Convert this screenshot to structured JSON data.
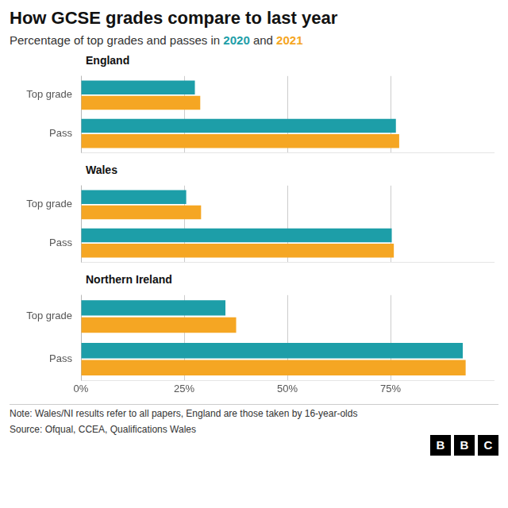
{
  "title": "How GCSE grades compare to last year",
  "subtitle": "Percentage of top grades and passes in 2020 and 2021",
  "annotations": [
    "Note: Wales/NI results refer to all papers, England are those taken by 16-year-olds",
    "Source: Ofqual, CCEA, Qualifications Wales",
    "BBC"
  ],
  "chart_data": [
    {
      "type": "bar",
      "title": "England",
      "orientation": "horizontal",
      "categories": [
        "Top grade",
        "Pass"
      ],
      "series": [
        {
          "name": "2020",
          "color": "#1D9EA8",
          "values": [
            27.6,
            76.3
          ]
        },
        {
          "name": "2021",
          "color": "#F5A623",
          "values": [
            28.9,
            77.1
          ]
        }
      ],
      "xlim": [
        0,
        100
      ],
      "xticks": [
        {
          "value": 0,
          "label": "0%"
        },
        {
          "value": 25,
          "label": "25%"
        },
        {
          "value": 50,
          "label": "50%"
        },
        {
          "value": 75,
          "label": "75%"
        }
      ],
      "grid": true,
      "tick_labels": "y"
    },
    {
      "type": "bar",
      "title": "Wales",
      "orientation": "horizontal",
      "categories": [
        "Top grade",
        "Pass"
      ],
      "series": [
        {
          "name": "2020",
          "color": "#1D9EA8",
          "values": [
            25.5,
            75.3
          ]
        },
        {
          "name": "2021",
          "color": "#F5A623",
          "values": [
            29.1,
            75.8
          ]
        }
      ],
      "xlim": [
        0,
        100
      ],
      "xticks": [
        {
          "value": 0,
          "label": "0%"
        },
        {
          "value": 25,
          "label": "25%"
        },
        {
          "value": 50,
          "label": "50%"
        },
        {
          "value": 75,
          "label": "75%"
        }
      ],
      "grid": true,
      "tick_labels": "y"
    },
    {
      "type": "bar",
      "title": "Northern Ireland",
      "orientation": "horizontal",
      "categories": [
        "Top grade",
        "Pass"
      ],
      "series": [
        {
          "name": "2020",
          "color": "#1D9EA8",
          "values": [
            35.0,
            92.5
          ]
        },
        {
          "name": "2021",
          "color": "#F5A623",
          "values": [
            37.6,
            93.2
          ]
        }
      ],
      "xlim": [
        0,
        100
      ],
      "xticks": [
        {
          "value": 0,
          "label": "0%"
        },
        {
          "value": 25,
          "label": "25%"
        },
        {
          "value": 50,
          "label": "50%"
        },
        {
          "value": 75,
          "label": "75%"
        }
      ],
      "grid": true
    }
  ]
}
